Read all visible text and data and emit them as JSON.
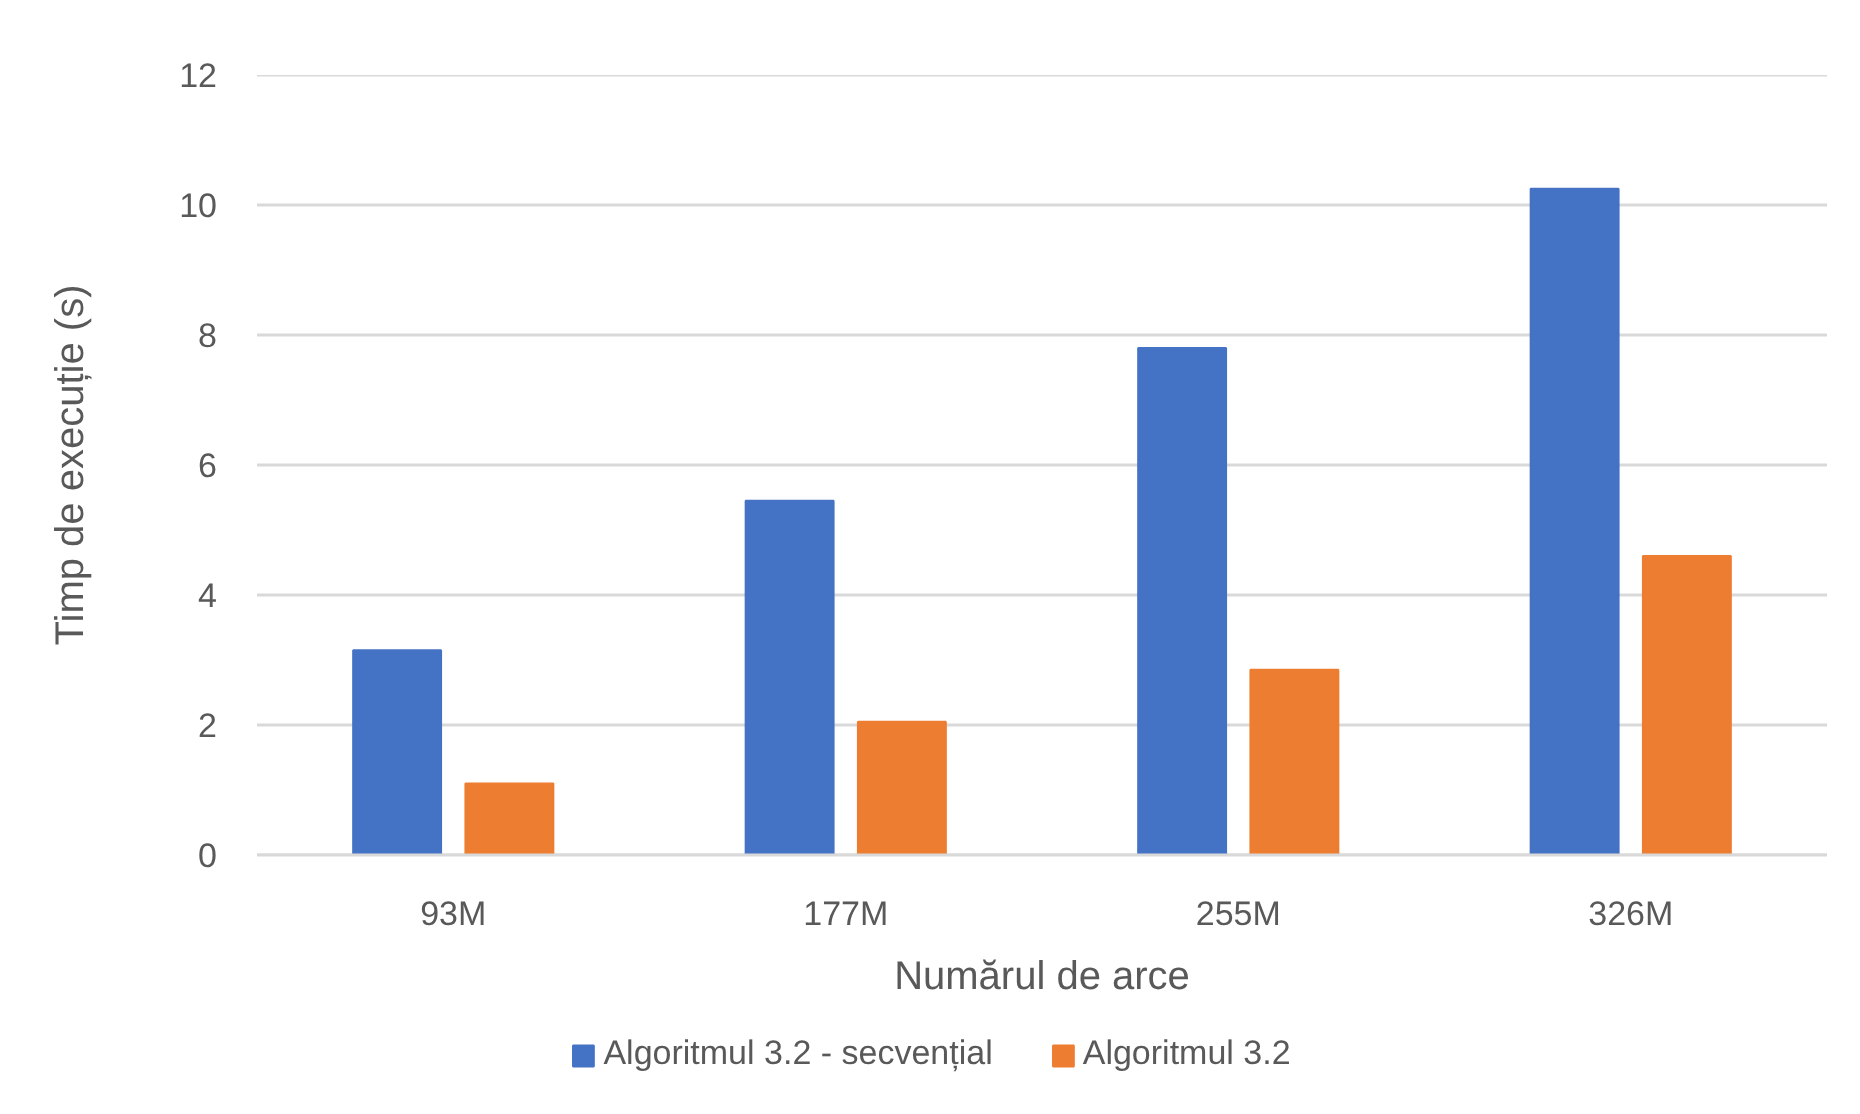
{
  "chart_data": {
    "type": "bar",
    "xlabel": "Numărul de arce",
    "ylabel": "Timp de execuție (s)",
    "categories": [
      "93M",
      "177M",
      "255M",
      "326M"
    ],
    "series": [
      {
        "name": "Algoritmul 3.2 - secvențial",
        "color": "#4472c4",
        "values": [
          3.15,
          5.45,
          7.8,
          10.25
        ]
      },
      {
        "name": "Algoritmul 3.2",
        "color": "#ed7d31",
        "values": [
          1.1,
          2.05,
          2.85,
          4.6
        ]
      }
    ],
    "ylim": [
      0,
      12
    ],
    "yticks": [
      0,
      2,
      4,
      6,
      8,
      10,
      12
    ],
    "grid": "y",
    "legend": "bottom"
  }
}
